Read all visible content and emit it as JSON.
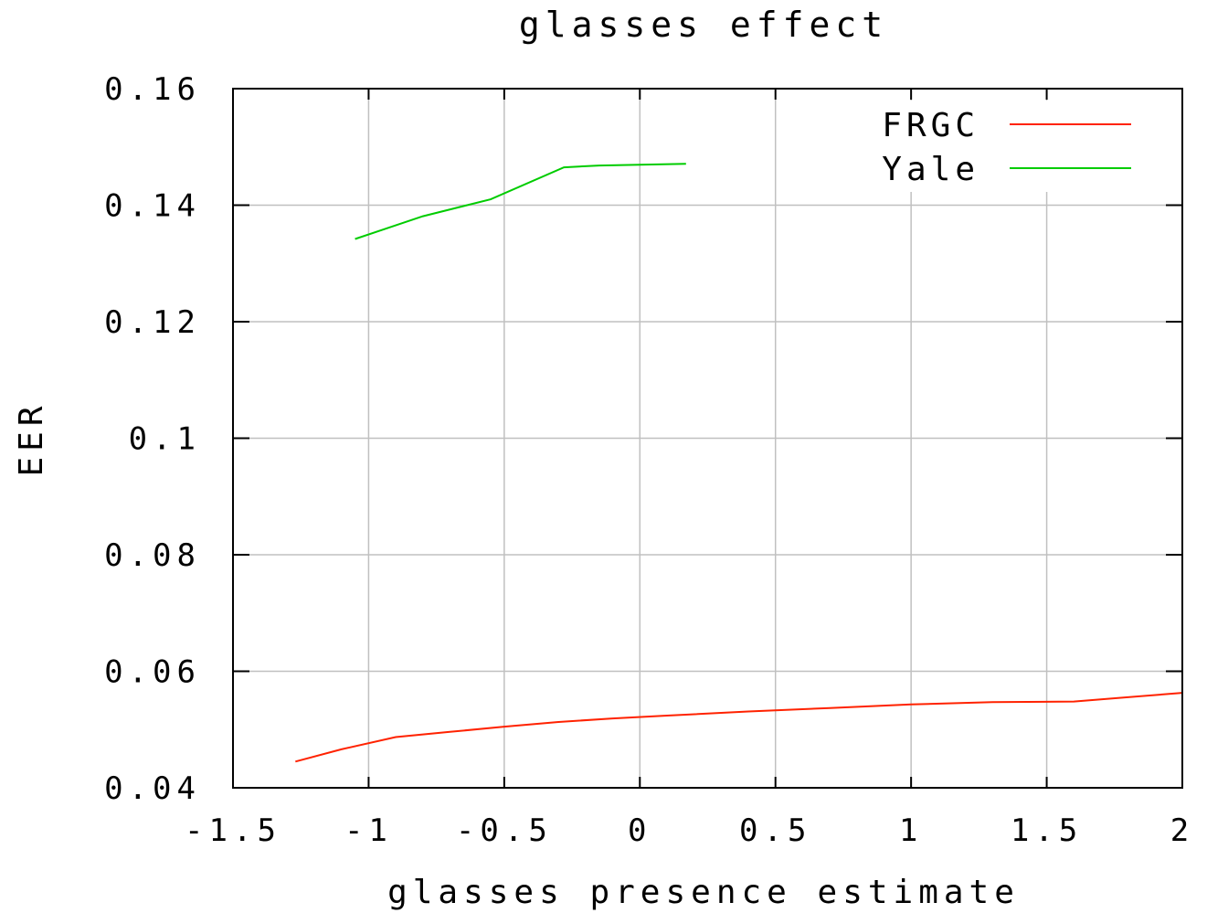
{
  "chart_data": {
    "type": "line",
    "title": "glasses effect",
    "xlabel": "glasses presence estimate",
    "ylabel": "EER",
    "xlim": [
      -1.5,
      2
    ],
    "ylim": [
      0.04,
      0.16
    ],
    "xticks": [
      -1.5,
      -1,
      -0.5,
      0,
      0.5,
      1,
      1.5,
      2
    ],
    "xtick_labels": [
      "-1.5",
      "-1",
      "-0.5",
      "0",
      "0.5",
      "1",
      "1.5",
      "2"
    ],
    "yticks": [
      0.04,
      0.06,
      0.08,
      0.1,
      0.12,
      0.14,
      0.16
    ],
    "ytick_labels": [
      "0.04",
      "0.06",
      "0.08",
      "0.1",
      "0.12",
      "0.14",
      "0.16"
    ],
    "grid": true,
    "legend_position": "top-right",
    "series": [
      {
        "name": "FRGC",
        "color": "#ff2200",
        "x": [
          -1.27,
          -1.1,
          -0.9,
          -0.7,
          -0.5,
          -0.3,
          -0.1,
          0.1,
          0.4,
          0.7,
          1.0,
          1.3,
          1.6,
          2.0
        ],
        "y": [
          0.0445,
          0.0466,
          0.0487,
          0.0496,
          0.0505,
          0.0513,
          0.0519,
          0.0524,
          0.0531,
          0.0537,
          0.0543,
          0.0547,
          0.0548,
          0.0563
        ]
      },
      {
        "name": "Yale",
        "color": "#00cc00",
        "x": [
          -1.05,
          -0.8,
          -0.55,
          -0.28,
          -0.15,
          0.17
        ],
        "y": [
          0.1342,
          0.1381,
          0.141,
          0.1465,
          0.1468,
          0.1471
        ]
      }
    ]
  }
}
